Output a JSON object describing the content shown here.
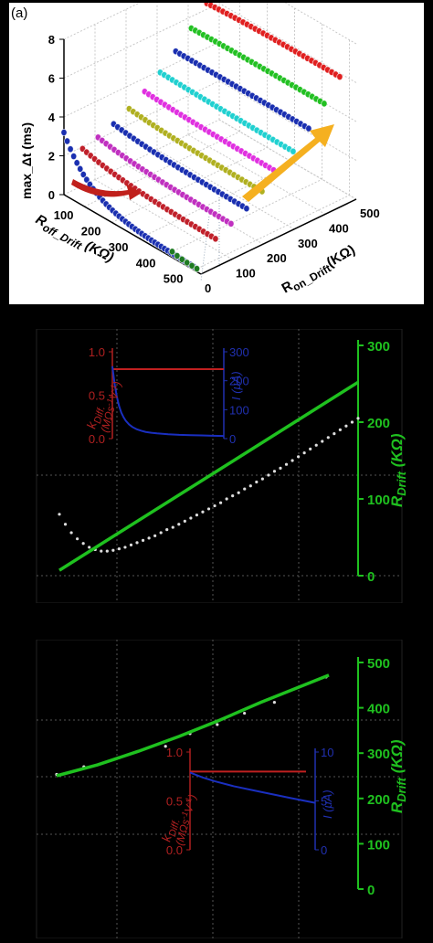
{
  "chart_data": [
    {
      "panel": "(a)",
      "type": "scatter3d",
      "zlabel": "max_Δt (ms)",
      "xlabel_parts": {
        "prefix": "R",
        "sub": "off_Drift",
        "unit": " (KΩ)"
      },
      "ylabel_parts": {
        "prefix": "R",
        "sub": "on_Drift",
        "unit": "(KΩ)"
      },
      "z_ticks": [
        "0",
        "2",
        "4",
        "6",
        "8"
      ],
      "roff_ticks": [
        "100",
        "200",
        "300",
        "400",
        "500"
      ],
      "ron_ticks": [
        "0",
        "100",
        "200",
        "300",
        "400",
        "500"
      ],
      "zlim": [
        0,
        8
      ],
      "series": [
        {
          "color": "#1a2fb0",
          "ron": 0,
          "z_start": 3.2,
          "z_end": 0.15
        },
        {
          "color": "#1e7a22",
          "ron": 0,
          "z_start": 0.3,
          "z_end": 0.15
        },
        {
          "color": "#c0202a",
          "ron": 60,
          "z_start": 1.9,
          "z_end": 1.2
        },
        {
          "color": "#c030c0",
          "ron": 110,
          "z_start": 2.1,
          "z_end": 1.6
        },
        {
          "color": "#1a2fb0",
          "ron": 160,
          "z_start": 2.4,
          "z_end": 2.0
        },
        {
          "color": "#b0b020",
          "ron": 210,
          "z_start": 2.8,
          "z_end": 2.5
        },
        {
          "color": "#e030e0",
          "ron": 260,
          "z_start": 3.3,
          "z_end": 3.1
        },
        {
          "color": "#20d0d0",
          "ron": 310,
          "z_start": 3.9,
          "z_end": 3.8
        },
        {
          "color": "#1a2fb0",
          "ron": 360,
          "z_start": 4.6,
          "z_end": 4.6
        },
        {
          "color": "#22c022",
          "ron": 410,
          "z_start": 5.4,
          "z_end": 5.5
        },
        {
          "color": "#e02020",
          "ron": 460,
          "z_start": 6.3,
          "z_end": 6.5
        }
      ]
    },
    {
      "type": "line",
      "y2label_parts": {
        "prefix": "R",
        "sub": "Drift",
        "unit": " (KΩ)"
      },
      "y2_ticks": [
        "0",
        "100",
        "200",
        "300"
      ],
      "y2lim": [
        0,
        300
      ],
      "drift_line": {
        "x": [
          0,
          1
        ],
        "y": [
          7,
          252
        ]
      },
      "dots": {
        "x": [
          0.0,
          0.02,
          0.04,
          0.06,
          0.08,
          0.1,
          0.12,
          0.14,
          0.16,
          0.18,
          0.2,
          0.22,
          0.24,
          0.26,
          0.28,
          0.3,
          0.32,
          0.34,
          0.36,
          0.38,
          0.4,
          0.42,
          0.44,
          0.46,
          0.48,
          0.5,
          0.52,
          0.54,
          0.56,
          0.58,
          0.6,
          0.62,
          0.64,
          0.66,
          0.68,
          0.7,
          0.72,
          0.74,
          0.76,
          0.78,
          0.8,
          0.82,
          0.84,
          0.86,
          0.88,
          0.9,
          0.92,
          0.94,
          0.96,
          0.98,
          1.0
        ],
        "y": [
          80,
          67,
          56,
          48,
          42,
          37,
          34,
          32,
          32,
          33,
          35,
          37,
          40,
          43,
          46,
          49,
          52,
          56,
          60,
          63,
          67,
          71,
          75,
          79,
          83,
          87,
          91,
          95,
          100,
          104,
          108,
          113,
          117,
          122,
          126,
          131,
          136,
          140,
          145,
          150,
          155,
          160,
          165,
          170,
          175,
          180,
          185,
          190,
          195,
          200,
          205
        ]
      },
      "inset": {
        "ylabel_left_parts": {
          "prefix": "k",
          "sub": "Diff.",
          "unit_line": "(MΩs",
          "unit_sup": "-1",
          "unit_end": "V",
          "unit_sup2": "-1",
          "close": ")"
        },
        "ylabel_right": "I (μA)",
        "left_ticks": [
          "0.0",
          "0.5",
          "1.0"
        ],
        "right_ticks": [
          "0",
          "100",
          "200",
          "300"
        ],
        "red_line": {
          "x": [
            0,
            1
          ],
          "y": [
            0.8,
            0.8
          ]
        },
        "blue_curve": {
          "x": [
            0.0,
            0.02,
            0.04,
            0.06,
            0.08,
            0.1,
            0.12,
            0.15,
            0.18,
            0.22,
            0.26,
            0.3,
            0.35,
            0.4,
            0.5,
            0.6,
            0.7,
            0.8,
            0.9,
            1.0
          ],
          "y": [
            250,
            190,
            145,
            113,
            90,
            74,
            62,
            49,
            40,
            32,
            27,
            23,
            20,
            18,
            15,
            13,
            12,
            11,
            10,
            9
          ]
        }
      }
    },
    {
      "type": "line",
      "y2label_parts": {
        "prefix": "R",
        "sub": "Drift",
        "unit": " (KΩ)"
      },
      "y2_ticks": [
        "0",
        "100",
        "200",
        "300",
        "400",
        "500"
      ],
      "y2lim": [
        0,
        500
      ],
      "drift_line": {
        "x": [
          0,
          0.15,
          0.3,
          0.45,
          0.6,
          0.75,
          1.0
        ],
        "y": [
          250,
          274,
          304,
          337,
          373,
          412,
          472
        ]
      },
      "dots": {
        "x": [
          0,
          0.1,
          0.23,
          0.4,
          0.49,
          0.59,
          0.69,
          0.8,
          0.99
        ],
        "y": [
          253,
          270,
          290,
          315,
          343,
          363,
          388,
          412,
          468
        ]
      },
      "inset": {
        "ylabel_left_parts": {
          "prefix": "k",
          "sub": "Diff.",
          "unit_line": "(MΩs",
          "unit_sup": "-1",
          "unit_end": "V",
          "unit_sup2": "-1",
          "close": ")"
        },
        "ylabel_right": "I (μA)",
        "left_ticks": [
          "0.0",
          "0.5",
          "1.0"
        ],
        "right_ticks": [
          "0",
          "5",
          "10"
        ],
        "red_line": {
          "x": [
            0,
            1
          ],
          "y": [
            0.8,
            0.8
          ]
        },
        "blue_curve": {
          "x": [
            0,
            0.1,
            0.2,
            0.35,
            0.5,
            0.65,
            0.8,
            1.0
          ],
          "y": [
            7.9,
            7.4,
            7.0,
            6.5,
            6.1,
            5.7,
            5.3,
            4.8
          ]
        }
      }
    }
  ]
}
